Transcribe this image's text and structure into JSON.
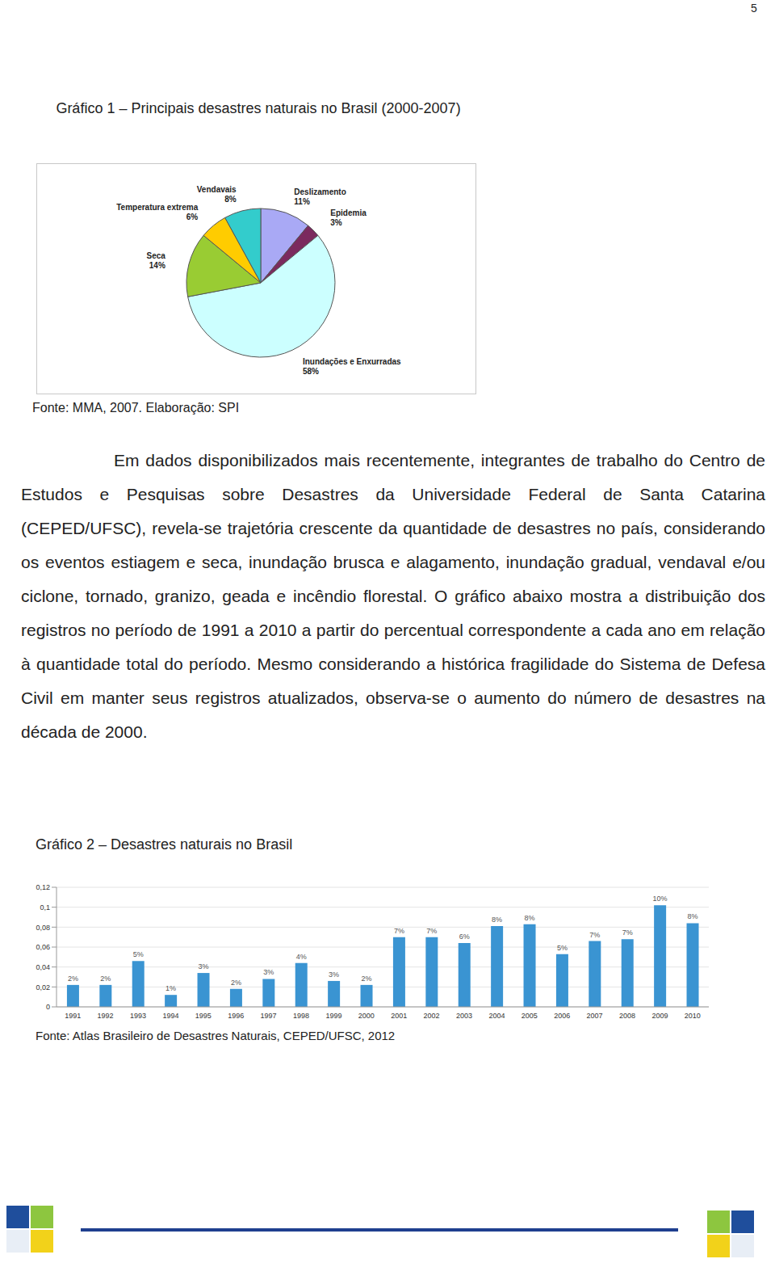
{
  "page_number": "5",
  "chart_data": [
    {
      "type": "pie",
      "title": "Gráfico 1 – Principais desastres naturais no Brasil (2000-2007)",
      "source": "Fonte: MMA, 2007. Elaboração: SPI",
      "categories": [
        "Deslizamento",
        "Epidemia",
        "Inundações e Enxurradas",
        "Seca",
        "Temperatura extrema",
        "Vendavais"
      ],
      "values": [
        11,
        3,
        58,
        14,
        6,
        8
      ],
      "value_labels": [
        "11%",
        "3%",
        "58%",
        "14%",
        "6%",
        "8%"
      ],
      "colors": [
        "#a9a9f5",
        "#7b2a5e",
        "#ccffff",
        "#99cc33",
        "#ffcc00",
        "#33cccc"
      ],
      "data_labels": true
    },
    {
      "type": "bar",
      "title": "Gráfico 2 – Desastres naturais no Brasil",
      "source": "Fonte: Atlas Brasileiro de Desastres Naturais, CEPED/UFSC, 2012",
      "categories": [
        "1991",
        "1992",
        "1993",
        "1994",
        "1995",
        "1996",
        "1997",
        "1998",
        "1999",
        "2000",
        "2001",
        "2002",
        "2003",
        "2004",
        "2005",
        "2006",
        "2007",
        "2008",
        "2009",
        "2010"
      ],
      "values": [
        0.022,
        0.022,
        0.046,
        0.012,
        0.034,
        0.018,
        0.028,
        0.044,
        0.026,
        0.022,
        0.07,
        0.07,
        0.064,
        0.081,
        0.083,
        0.053,
        0.066,
        0.068,
        0.102,
        0.084
      ],
      "value_labels": [
        "2%",
        "2%",
        "5%",
        "1%",
        "3%",
        "2%",
        "3%",
        "4%",
        "3%",
        "2%",
        "7%",
        "7%",
        "6%",
        "8%",
        "8%",
        "5%",
        "7%",
        "7%",
        "10%",
        "8%"
      ],
      "color": "#3a94d2",
      "ylim": [
        0,
        0.12
      ],
      "yticks": [
        0,
        {
          "value": 0.02,
          "label": "0,02"
        },
        {
          "value": 0.04,
          "label": "0,04"
        },
        {
          "value": 0.06,
          "label": "0,06"
        },
        {
          "value": 0.08,
          "label": "0,08"
        },
        {
          "value": 0.1,
          "label": "0,1"
        },
        {
          "value": 0.12,
          "label": "0,12"
        }
      ],
      "grid": true,
      "data_labels": true
    }
  ],
  "paragraph": "Em dados disponibilizados mais recentemente, integrantes de trabalho do Centro de Estudos e Pesquisas sobre Desastres da Universidade Federal de Santa Catarina (CEPED/UFSC), revela-se trajetória crescente da quantidade de desastres no país, considerando os eventos estiagem e seca, inundação brusca e alagamento, inundação gradual, vendaval e/ou ciclone, tornado, granizo, geada e incêndio florestal. O gráfico abaixo mostra a distribuição dos registros no período de 1991 a 2010 a partir do percentual correspondente a cada ano em relação à quantidade total do período. Mesmo considerando a histórica fragilidade do Sistema de Defesa Civil em manter seus registros atualizados, observa-se o aumento do número de desastres na década de 2000."
}
